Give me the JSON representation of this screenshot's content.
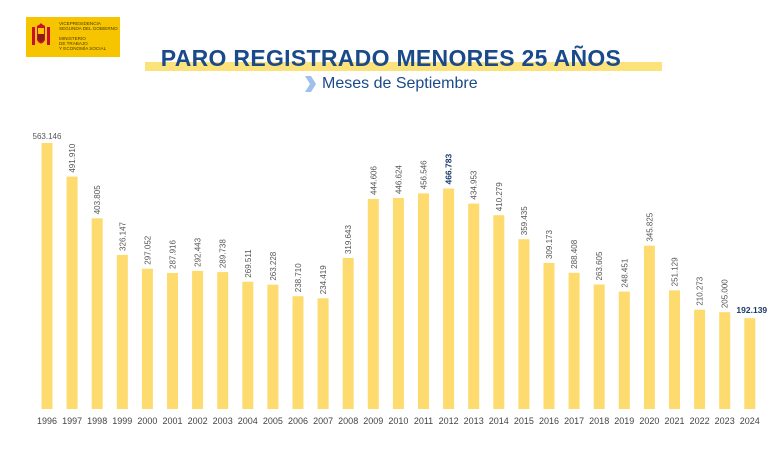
{
  "logo": {
    "line1": "VICEPRESIDENCIA",
    "line2": "SEGUNDA DEL GOBIERNO",
    "line3": "MINISTERIO",
    "line4": "DE TRABAJO",
    "line5": "Y ECONOMÍA SOCIAL",
    "icon": "spain-coat-of-arms-icon"
  },
  "colors": {
    "bar": "#fddb6e",
    "title": "#1a4a8a",
    "logo_bg": "#f7c400",
    "label": "#555555",
    "highlight_label": "#1a3a6a"
  },
  "title": "PARO REGISTRADO MENORES 25 AÑOS",
  "subtitle": "Meses de Septiembre",
  "chart_data": {
    "type": "bar",
    "title": "PARO REGISTRADO MENORES 25 AÑOS",
    "subtitle": "Meses de Septiembre",
    "xlabel": "",
    "ylabel": "",
    "ylim": [
      0,
      563146
    ],
    "grid": false,
    "legend": "none",
    "categories": [
      "1996",
      "1997",
      "1998",
      "1999",
      "2000",
      "2001",
      "2002",
      "2003",
      "2004",
      "2005",
      "2006",
      "2007",
      "2008",
      "2009",
      "2010",
      "2011",
      "2012",
      "2013",
      "2014",
      "2015",
      "2016",
      "2017",
      "2018",
      "2019",
      "2020",
      "2021",
      "2022",
      "2023",
      "2024"
    ],
    "values": [
      563146,
      491910,
      403805,
      326147,
      297052,
      287916,
      292443,
      289738,
      269511,
      263228,
      238710,
      234419,
      319643,
      444606,
      446624,
      456546,
      466783,
      434953,
      410279,
      359435,
      309173,
      288408,
      263605,
      248451,
      345825,
      251129,
      210273,
      205000,
      192139
    ],
    "data_labels": [
      "563.146",
      "491.910",
      "403.805",
      "326.147",
      "297.052",
      "287.916",
      "292.443",
      "289.738",
      "269.511",
      "263.228",
      "238.710",
      "234.419",
      "319.643",
      "444.606",
      "446.624",
      "456.546",
      "466.783",
      "434.953",
      "410.279",
      "359.435",
      "309.173",
      "288.408",
      "263.605",
      "248.451",
      "345.825",
      "251.129",
      "210.273",
      "205.000",
      "192.139"
    ],
    "highlighted": [
      "2012",
      "2024"
    ]
  }
}
